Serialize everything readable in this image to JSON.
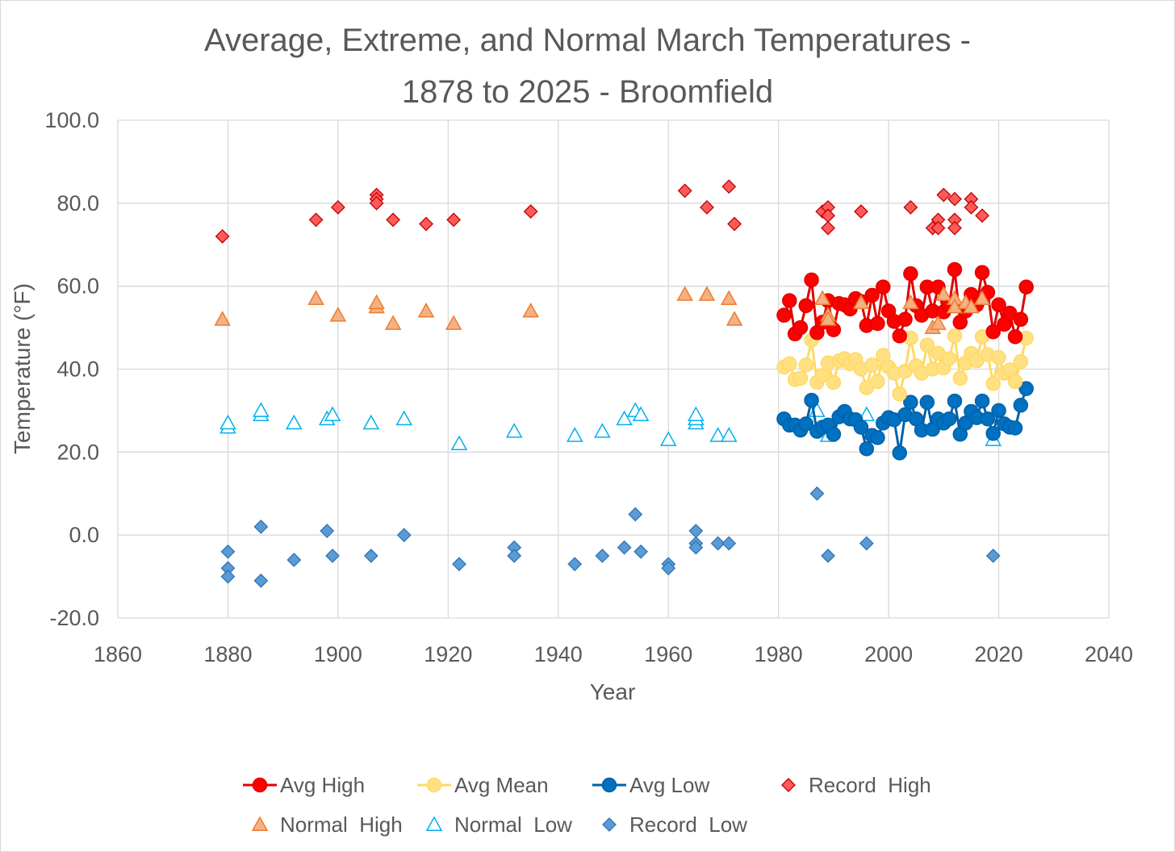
{
  "chart_data": {
    "type": "scatter",
    "title_lines": [
      "Average, Extreme, and Normal March Temperatures -",
      "1878 to 2025 - Broomfield"
    ],
    "xlabel": "Year",
    "ylabel": "Temperature (°F)",
    "xlim": [
      1860,
      2040
    ],
    "ylim": [
      -20,
      100
    ],
    "x_ticks": [
      "1860",
      "1880",
      "1900",
      "1920",
      "1940",
      "1960",
      "1980",
      "2000",
      "2020",
      "2040"
    ],
    "y_ticks": [
      "100.0",
      "80.0",
      "60.0",
      "40.0",
      "20.0",
      "0.0",
      "-20.0"
    ],
    "grid": true,
    "legend_position": "bottom",
    "series": [
      {
        "name": "Avg High",
        "marker": "circle",
        "line": true,
        "color": "#ff0000",
        "stroke": "#e00000",
        "x": [
          1981,
          1982,
          1983,
          1984,
          1985,
          1986,
          1987,
          1988,
          1989,
          1990,
          1991,
          1992,
          1993,
          1994,
          1995,
          1996,
          1997,
          1998,
          1999,
          2000,
          2001,
          2002,
          2003,
          2004,
          2005,
          2006,
          2007,
          2008,
          2009,
          2010,
          2011,
          2012,
          2013,
          2014,
          2015,
          2016,
          2017,
          2018,
          2019,
          2020,
          2021,
          2022,
          2023,
          2024,
          2025
        ],
        "y": [
          53.0,
          56.5,
          48.5,
          50.0,
          55.3,
          61.5,
          48.8,
          51.3,
          56.5,
          49.5,
          55.8,
          55.5,
          54.5,
          57.0,
          56.3,
          50.5,
          57.8,
          51.0,
          59.8,
          54.0,
          51.5,
          48.0,
          52.0,
          63.0,
          55.3,
          53.0,
          59.8,
          54.0,
          59.8,
          53.8,
          55.5,
          64.0,
          51.3,
          54.0,
          58.0,
          55.5,
          63.3,
          58.5,
          49.0,
          55.5,
          50.8,
          53.5,
          47.8,
          52.0,
          59.8
        ]
      },
      {
        "name": "Avg Mean",
        "marker": "circle",
        "line": true,
        "color": "#ffe082",
        "stroke": "#ffd966",
        "x": [
          1981,
          1982,
          1983,
          1984,
          1985,
          1986,
          1987,
          1988,
          1989,
          1990,
          1991,
          1992,
          1993,
          1994,
          1995,
          1996,
          1997,
          1998,
          1999,
          2000,
          2001,
          2002,
          2003,
          2004,
          2005,
          2006,
          2007,
          2008,
          2009,
          2010,
          2011,
          2012,
          2013,
          2014,
          2015,
          2016,
          2017,
          2018,
          2019,
          2020,
          2021,
          2022,
          2023,
          2024,
          2025
        ],
        "y": [
          40.5,
          41.3,
          37.5,
          37.8,
          41.0,
          47.0,
          36.8,
          38.5,
          41.5,
          36.8,
          42.0,
          42.5,
          41.3,
          42.3,
          40.0,
          35.5,
          41.0,
          37.0,
          43.3,
          40.5,
          39.0,
          34.0,
          39.5,
          47.5,
          40.8,
          39.0,
          45.8,
          40.0,
          43.8,
          40.3,
          42.5,
          48.0,
          37.8,
          41.5,
          43.8,
          42.0,
          47.8,
          43.5,
          36.5,
          42.8,
          39.0,
          39.8,
          37.0,
          41.8,
          47.5
        ]
      },
      {
        "name": "Avg Low",
        "marker": "circle",
        "line": true,
        "color": "#0070c0",
        "stroke": "#0061a8",
        "x": [
          1981,
          1982,
          1983,
          1984,
          1985,
          1986,
          1987,
          1988,
          1989,
          1990,
          1991,
          1992,
          1993,
          1994,
          1995,
          1996,
          1997,
          1998,
          1999,
          2000,
          2001,
          2002,
          2003,
          2004,
          2005,
          2006,
          2007,
          2008,
          2009,
          2010,
          2011,
          2012,
          2013,
          2014,
          2015,
          2016,
          2017,
          2018,
          2019,
          2020,
          2021,
          2022,
          2023,
          2024,
          2025
        ],
        "y": [
          28.0,
          26.5,
          26.5,
          25.3,
          26.8,
          32.5,
          25.0,
          26.0,
          26.5,
          24.3,
          28.5,
          29.8,
          28.0,
          27.8,
          26.0,
          20.8,
          24.0,
          23.5,
          27.0,
          28.3,
          27.8,
          19.8,
          29.0,
          32.0,
          28.0,
          25.3,
          32.0,
          25.5,
          28.0,
          27.0,
          28.0,
          32.3,
          24.3,
          27.0,
          29.8,
          28.3,
          32.3,
          28.0,
          24.5,
          30.0,
          26.8,
          26.0,
          25.8,
          31.3,
          35.3
        ]
      },
      {
        "name": "Record  High",
        "marker": "diamond",
        "line": false,
        "color": "#ff5a5a",
        "stroke": "#c00000",
        "x": [
          1879,
          1896,
          1900,
          1907,
          1907,
          1907,
          1910,
          1916,
          1921,
          1935,
          1963,
          1967,
          1971,
          1972,
          1988,
          1989,
          1989,
          1989,
          1995,
          2004,
          2008,
          2009,
          2009,
          2010,
          2012,
          2012,
          2012,
          2015,
          2015,
          2017
        ],
        "y": [
          72,
          76,
          79,
          82,
          81,
          80,
          76,
          75,
          76,
          78,
          83,
          79,
          84,
          75,
          78,
          79,
          77,
          74,
          78,
          79,
          74,
          76,
          74,
          82,
          81,
          76,
          74,
          81,
          79,
          77
        ]
      },
      {
        "name": "Normal  High",
        "marker": "triangle",
        "line": false,
        "color": "#f4b183",
        "stroke": "#ed7d31",
        "x": [
          1879,
          1896,
          1900,
          1907,
          1907,
          1910,
          1916,
          1921,
          1935,
          1963,
          1967,
          1971,
          1972,
          1988,
          1989,
          1989,
          1995,
          2004,
          2008,
          2009,
          2010,
          2012,
          2012,
          2014,
          2015,
          2017
        ],
        "y": [
          52,
          57,
          53,
          55,
          56,
          51,
          54,
          51,
          54,
          58,
          58,
          57,
          52,
          57,
          53,
          52,
          56,
          56,
          50,
          51,
          58,
          57,
          55,
          56,
          55,
          57
        ]
      },
      {
        "name": "Normal  Low",
        "marker": "triangle-open",
        "line": false,
        "color": "#ffffff",
        "stroke": "#00b0f0",
        "x": [
          1880,
          1880,
          1886,
          1886,
          1892,
          1898,
          1899,
          1906,
          1912,
          1922,
          1932,
          1943,
          1948,
          1952,
          1954,
          1955,
          1960,
          1965,
          1965,
          1965,
          1969,
          1971,
          1987,
          1989,
          1996,
          2019
        ],
        "y": [
          26,
          27,
          29,
          30,
          27,
          28,
          29,
          27,
          28,
          22,
          25,
          24,
          25,
          28,
          30,
          29,
          23,
          27,
          28,
          29,
          24,
          24,
          30,
          24,
          29,
          23
        ]
      },
      {
        "name": "Record  Low",
        "marker": "diamond",
        "line": false,
        "color": "#5b9bd5",
        "stroke": "#2e75b6",
        "x": [
          1880,
          1880,
          1880,
          1886,
          1886,
          1892,
          1898,
          1899,
          1906,
          1912,
          1922,
          1932,
          1932,
          1943,
          1948,
          1952,
          1954,
          1955,
          1960,
          1960,
          1965,
          1965,
          1965,
          1969,
          1971,
          1987,
          1989,
          1996,
          2019
        ],
        "y": [
          -4,
          -8,
          -10,
          2,
          -11,
          -6,
          1,
          -5,
          -5,
          0,
          -7,
          -3,
          -5,
          -7,
          -5,
          -3,
          5,
          -4,
          -7,
          -8,
          1,
          -2,
          -3,
          -2,
          -2,
          10,
          -5,
          -2,
          -5
        ]
      }
    ]
  }
}
